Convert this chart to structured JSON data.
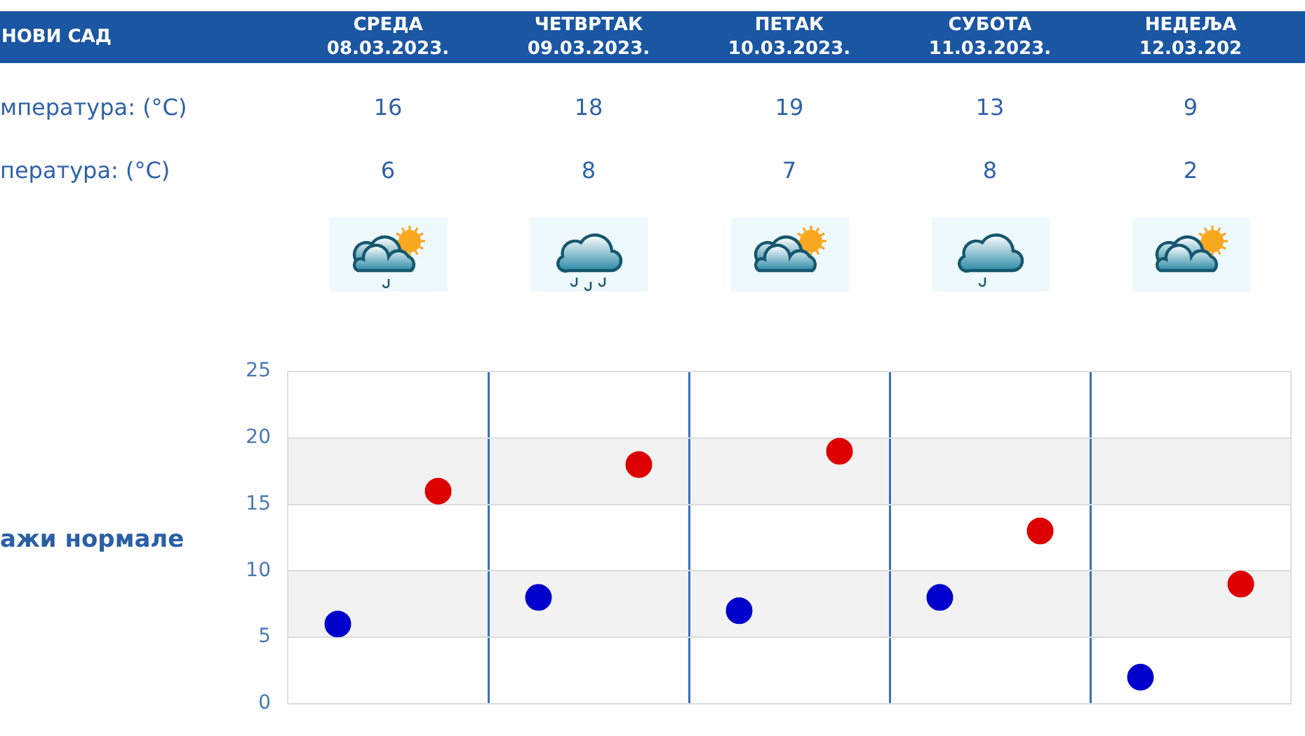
{
  "chart_data": {
    "type": "scatter",
    "title": "НОВИ САД",
    "categories": [
      null,
      null,
      null,
      null,
      null
    ],
    "series": [
      {
        "color": "#dd0000",
        "values": [
          16,
          18,
          19,
          13,
          9
        ]
      },
      {
        "color": "#0000cc",
        "values": [
          6,
          8,
          7,
          8,
          2
        ]
      }
    ],
    "ylim": [
      0,
      25
    ],
    "yticks": [
      0,
      5,
      10,
      15,
      20,
      25
    ],
    "grid": true,
    "marker": "circle",
    "data_labels": true,
    "bands": [
      {
        "axis": "y",
        "from": 5,
        "to": 10,
        "color": "#f2f2f2"
      },
      {
        "axis": "y",
        "from": 15,
        "to": 20,
        "color": "#f2f2f2"
      }
    ],
    "annotations": [
      "СРЕДА\n08.03.2023.",
      "ЧЕТВРТАК\n09.03.2023.",
      "ПЕТАК\n10.03.2023.",
      "СУБОТА\n11.03.2023.",
      "НЕДЕЉА\n12.03.202",
      "мпература: (°C)",
      "пература: (°C)",
      "ажи нормале"
    ]
  }
}
